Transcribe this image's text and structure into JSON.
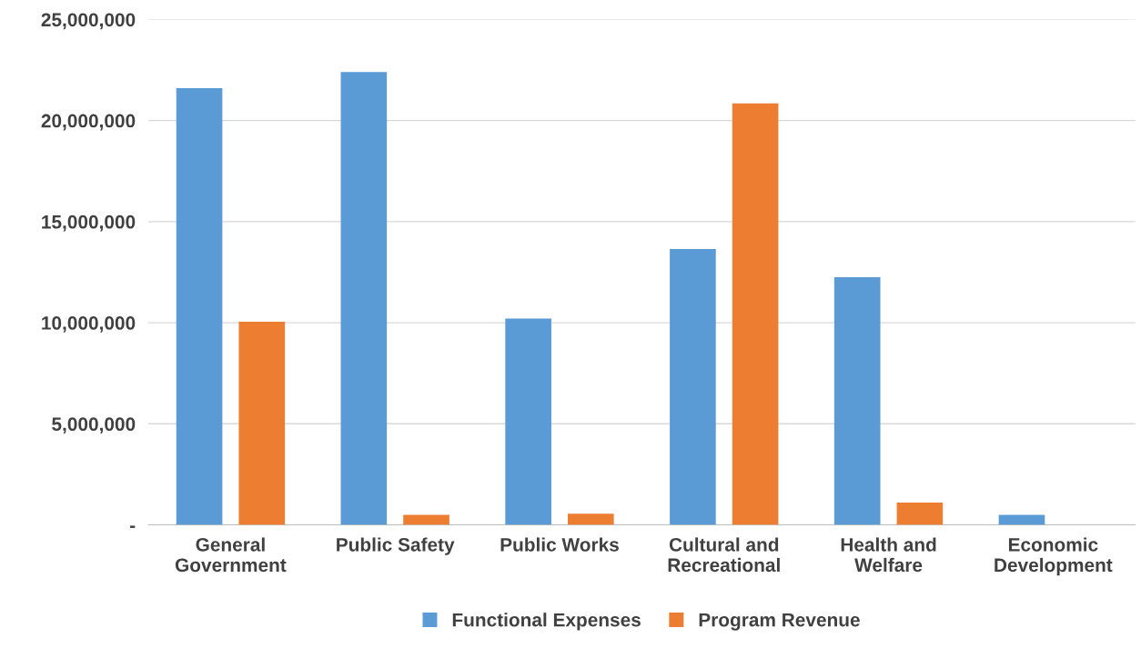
{
  "chart_data": {
    "type": "bar",
    "categories": [
      "General\nGovernment",
      "Public Safety",
      "Public Works",
      "Cultural and\nRecreational",
      "Health and\nWelfare",
      "Economic\nDevelopment"
    ],
    "series": [
      {
        "name": "Functional Expenses",
        "color": "#5b9bd5",
        "values": [
          21600000,
          22400000,
          10200000,
          13650000,
          12250000,
          500000
        ]
      },
      {
        "name": "Program Revenue",
        "color": "#ed7d31",
        "values": [
          10050000,
          500000,
          550000,
          20850000,
          1100000,
          0
        ]
      }
    ],
    "ylim": [
      0,
      25000000
    ],
    "yticks": [
      {
        "value": 0,
        "label": "-"
      },
      {
        "value": 5000000,
        "label": "5,000,000"
      },
      {
        "value": 10000000,
        "label": "10,000,000"
      },
      {
        "value": 15000000,
        "label": "15,000,000"
      },
      {
        "value": 20000000,
        "label": "20,000,000"
      },
      {
        "value": 25000000,
        "label": "25,000,000"
      }
    ],
    "grid": "y",
    "legend": "bottom"
  }
}
